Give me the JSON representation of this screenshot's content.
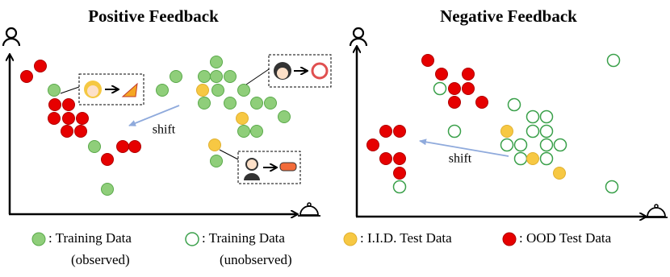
{
  "panels": [
    {
      "title": "Positive Feedback",
      "shift_label": "shift"
    },
    {
      "title": "Negative Feedback",
      "shift_label": "shift"
    }
  ],
  "legend": [
    {
      "label": ": Training Data",
      "note": "(observed)"
    },
    {
      "label": ": Training Data",
      "note": "(unobserved)"
    },
    {
      "label": ": I.I.D. Test Data"
    },
    {
      "label": ": OOD Test Data"
    }
  ]
}
